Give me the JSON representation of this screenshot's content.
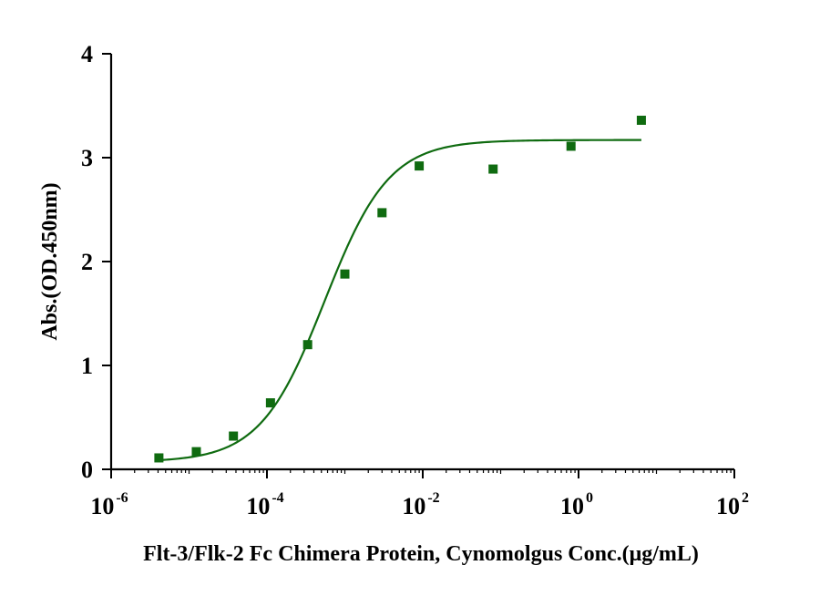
{
  "chart_data": {
    "type": "scatter",
    "xscale": "log",
    "xlim": [
      1e-06,
      100
    ],
    "ylim": [
      0,
      4
    ],
    "xlabel": "Flt-3/Flk-2 Fc Chimera Protein, Cynomolgus Conc.(μg/mL)",
    "ylabel": "Abs.(OD.450nm)",
    "yticks": [
      "0",
      "1",
      "2",
      "3",
      "4"
    ],
    "xticks": [
      {
        "base": "10",
        "exp": "-6",
        "value": 1e-06
      },
      {
        "base": "10",
        "exp": "-4",
        "value": 0.0001
      },
      {
        "base": "10",
        "exp": "-2",
        "value": 0.01
      },
      {
        "base": "10",
        "exp": "0",
        "value": 1
      },
      {
        "base": "10",
        "exp": "2",
        "value": 100
      }
    ],
    "series": [
      {
        "color": "#0f6b10",
        "marker": "square",
        "points": [
          {
            "x": 4.1e-06,
            "y": 0.11
          },
          {
            "x": 1.24e-05,
            "y": 0.17
          },
          {
            "x": 3.71e-05,
            "y": 0.32
          },
          {
            "x": 0.000111,
            "y": 0.64
          },
          {
            "x": 0.000333,
            "y": 1.2
          },
          {
            "x": 0.001,
            "y": 1.88
          },
          {
            "x": 0.003,
            "y": 2.47
          },
          {
            "x": 0.009,
            "y": 2.92
          },
          {
            "x": 0.08,
            "y": 2.89
          },
          {
            "x": 0.8,
            "y": 3.11
          },
          {
            "x": 6.4,
            "y": 3.36
          }
        ],
        "fit": {
          "bottom": 0.07,
          "top": 3.17,
          "ec50": 0.00055,
          "hill": 1.05,
          "x_range": [
            4.1e-06,
            6.4
          ]
        }
      }
    ]
  }
}
